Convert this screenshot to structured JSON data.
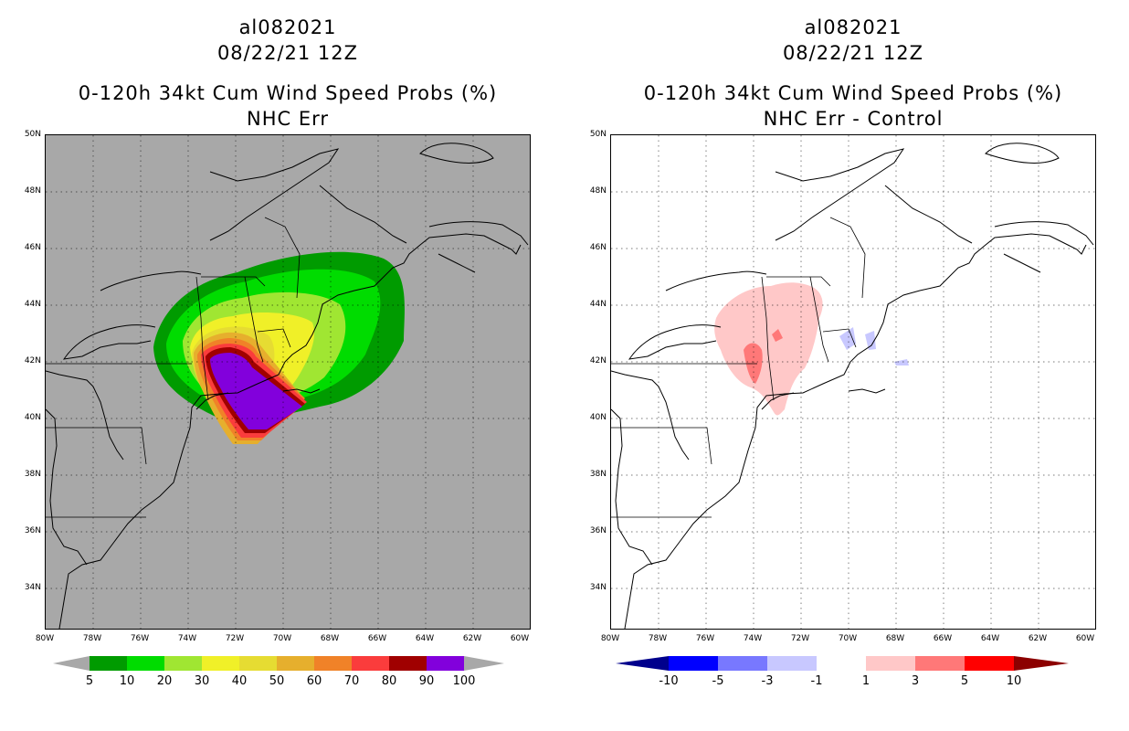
{
  "left_panel": {
    "title_line1": "al082021",
    "title_line2": "08/22/21 12Z",
    "title_line3": "0-120h 34kt Cum Wind Speed Probs (%)",
    "title_line4": "NHC Err",
    "background_color": "#a8a8a8",
    "colorbar": {
      "colors": [
        "#009b00",
        "#00dc00",
        "#a0e632",
        "#f0f028",
        "#e6dc32",
        "#e6af2d",
        "#f08228",
        "#fa3c3c",
        "#a00000",
        "#8200dc"
      ],
      "ticks": [
        "5",
        "10",
        "20",
        "30",
        "40",
        "50",
        "60",
        "70",
        "80",
        "90",
        "100"
      ]
    }
  },
  "right_panel": {
    "title_line1": "al082021",
    "title_line2": "08/22/21 12Z",
    "title_line3": "0-120h 34kt Cum Wind Speed Probs (%)",
    "title_line4": "NHC Err - Control",
    "colorbar": {
      "colors": [
        "#0000ff",
        "#7878ff",
        "#c8c8ff",
        "#ffffff",
        "#ffc8c8",
        "#ff7878",
        "#ff0000"
      ],
      "end_low": "#00008c",
      "end_high": "#8c0000",
      "ticks": [
        "-10",
        "-5",
        "-3",
        "-1",
        "1",
        "3",
        "5",
        "10"
      ]
    }
  },
  "lat_labels": [
    "50N",
    "48N",
    "46N",
    "44N",
    "42N",
    "40N",
    "38N",
    "36N",
    "34N"
  ],
  "lon_labels": [
    "80W",
    "78W",
    "76W",
    "74W",
    "72W",
    "70W",
    "68W",
    "66W",
    "64W",
    "62W",
    "60W"
  ]
}
